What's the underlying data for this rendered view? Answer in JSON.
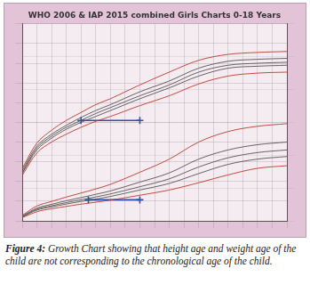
{
  "chart_data": {
    "type": "line",
    "title": "WHO 2006 & IAP 2015 combined Girls Charts 0-18 Years",
    "x": [
      0,
      1,
      2,
      3,
      4,
      5,
      6,
      8,
      10,
      12,
      14,
      16,
      18
    ],
    "xlim": [
      0,
      18
    ],
    "xticks": [
      0,
      1,
      2,
      3,
      4,
      5,
      6,
      7,
      8,
      9,
      10,
      11,
      12,
      13,
      14,
      15,
      16,
      17,
      18
    ],
    "ylim": [
      0,
      200
    ],
    "yticks": [
      0,
      20,
      40,
      60,
      80,
      100,
      120,
      140,
      160,
      180,
      200
    ],
    "y2lim": [
      0,
      150
    ],
    "y2ticks": [
      0,
      25,
      50,
      75,
      100,
      125,
      150
    ],
    "grid": true,
    "tick_labels": false,
    "series": [
      {
        "color": "#c0392b",
        "values": [
          46,
          69,
          80,
          88,
          95,
          101,
          106,
          117,
          127,
          139,
          147,
          150,
          151
        ]
      },
      {
        "color": "#555555",
        "values": [
          48,
          72,
          84,
          93,
          100,
          106,
          112,
          124,
          135,
          147,
          155,
          157,
          158
        ]
      },
      {
        "color": "#555555",
        "values": [
          49,
          74,
          86,
          95,
          102,
          109,
          115,
          127,
          138,
          151,
          158,
          160,
          161
        ]
      },
      {
        "color": "#555555",
        "values": [
          51,
          76,
          88,
          97,
          105,
          112,
          118,
          131,
          142,
          155,
          162,
          164,
          165
        ]
      },
      {
        "color": "#c0392b",
        "values": [
          53,
          79,
          92,
          102,
          110,
          118,
          124,
          138,
          151,
          163,
          169,
          171,
          172
        ]
      },
      {
        "color": "#c0392b",
        "axis": "y2",
        "values": [
          2.4,
          7.0,
          9.2,
          11.0,
          12.7,
          14.2,
          15.8,
          19.5,
          23.5,
          29,
          35,
          40,
          42
        ]
      },
      {
        "color": "#555555",
        "axis": "y2",
        "values": [
          2.9,
          8.2,
          10.6,
          12.8,
          14.8,
          16.6,
          18.6,
          23.5,
          28.5,
          36,
          43,
          47,
          49
        ]
      },
      {
        "color": "#555555",
        "axis": "y2",
        "values": [
          3.2,
          8.9,
          11.5,
          13.9,
          16.1,
          18.2,
          20.5,
          26,
          32,
          41,
          48,
          52,
          54
        ]
      },
      {
        "color": "#555555",
        "axis": "y2",
        "values": [
          3.6,
          9.7,
          12.6,
          15.3,
          17.7,
          20.2,
          22.8,
          29.5,
          36.5,
          47,
          54,
          58,
          60
        ]
      },
      {
        "color": "#c0392b",
        "axis": "y2",
        "values": [
          4.2,
          11.3,
          14.8,
          18.1,
          21.2,
          24.3,
          27.8,
          37,
          47,
          60,
          68,
          72,
          74
        ]
      },
      {
        "color": "#2a4fb5",
        "marker": "cross",
        "x": [
          4,
          8
        ],
        "values": [
          102,
          102
        ]
      },
      {
        "color": "#2a4fb5",
        "marker": "cross",
        "axis": "y2",
        "x": [
          4.5,
          8
        ],
        "values": [
          16,
          16
        ]
      }
    ]
  },
  "caption": {
    "label": "Figure 4:",
    "text": "Growth Chart showing that height age and weight age of the child are not corresponding to the chronological age of the child."
  }
}
